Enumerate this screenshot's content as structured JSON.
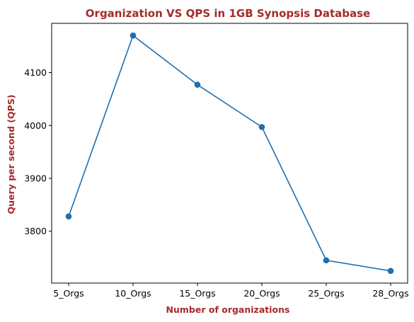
{
  "chart_data": {
    "type": "line",
    "title": "Organization VS QPS in 1GB Synopsis Database",
    "xlabel": "Number of organizations",
    "ylabel": "Query per second (QPS)",
    "categories": [
      "5_Orgs",
      "10_Orgs",
      "15_Orgs",
      "20_Orgs",
      "25_Orgs",
      "28_Orgs"
    ],
    "series": [
      {
        "values": [
          3828,
          4170,
          4077,
          3997,
          3745,
          3725
        ]
      }
    ],
    "yticks": [
      3800,
      3900,
      4000,
      4100
    ],
    "ylim": [
      3702,
      4193
    ],
    "grid": false,
    "marker": "circle"
  },
  "colors": {
    "line": "#1f6fb0",
    "title": "#a52a2a",
    "axis_label": "#a52a2a",
    "axes": "#000000"
  }
}
